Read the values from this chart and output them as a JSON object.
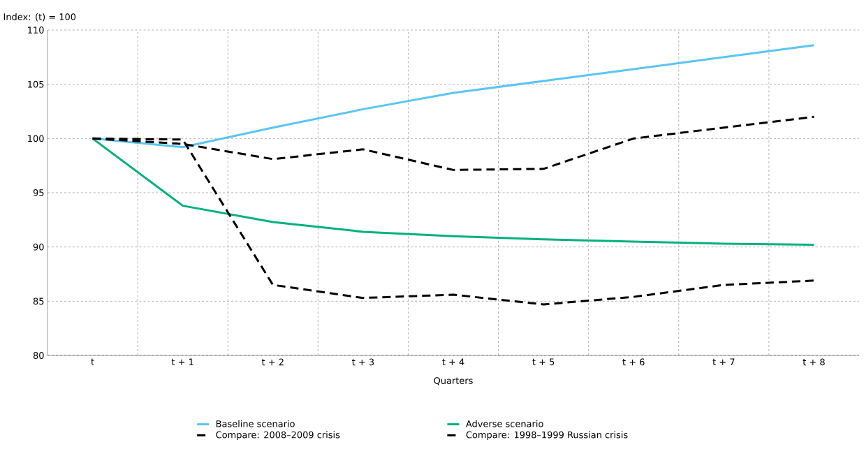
{
  "chart_data": {
    "type": "line",
    "ylabel": "Index: (t) = 100",
    "xlabel": "Quarters",
    "categories": [
      "t",
      "t + 1",
      "t + 2",
      "t + 3",
      "t + 4",
      "t + 5",
      "t + 6",
      "t + 7",
      "t + 8"
    ],
    "series": [
      {
        "name": "Baseline scenario",
        "color": "#5bc5f2",
        "line_style": "solid",
        "values": [
          100,
          99.2,
          101.0,
          102.7,
          104.2,
          105.3,
          106.4,
          107.5,
          108.6
        ]
      },
      {
        "name": "Adverse scenario",
        "color": "#00b17f",
        "line_style": "solid",
        "values": [
          100,
          93.8,
          92.3,
          91.4,
          91.0,
          90.7,
          90.5,
          90.3,
          90.2
        ]
      },
      {
        "name": "Compare: 2008–2009 crisis",
        "color": "#000000",
        "line_style": "dashed",
        "values": [
          100,
          99.9,
          86.5,
          85.3,
          85.6,
          84.7,
          85.4,
          86.5,
          86.9
        ]
      },
      {
        "name": "Compare: 1998–1999 Russian crisis",
        "color": "#000000",
        "line_style": "dashed",
        "values": [
          100,
          99.5,
          98.1,
          99.0,
          97.1,
          97.2,
          100.0,
          101.0,
          102.0
        ]
      }
    ],
    "ylim": [
      80,
      110
    ],
    "yticks": [
      80,
      85,
      90,
      95,
      100,
      105,
      110
    ],
    "grid": true,
    "legend": "bottom",
    "marker": "none"
  }
}
